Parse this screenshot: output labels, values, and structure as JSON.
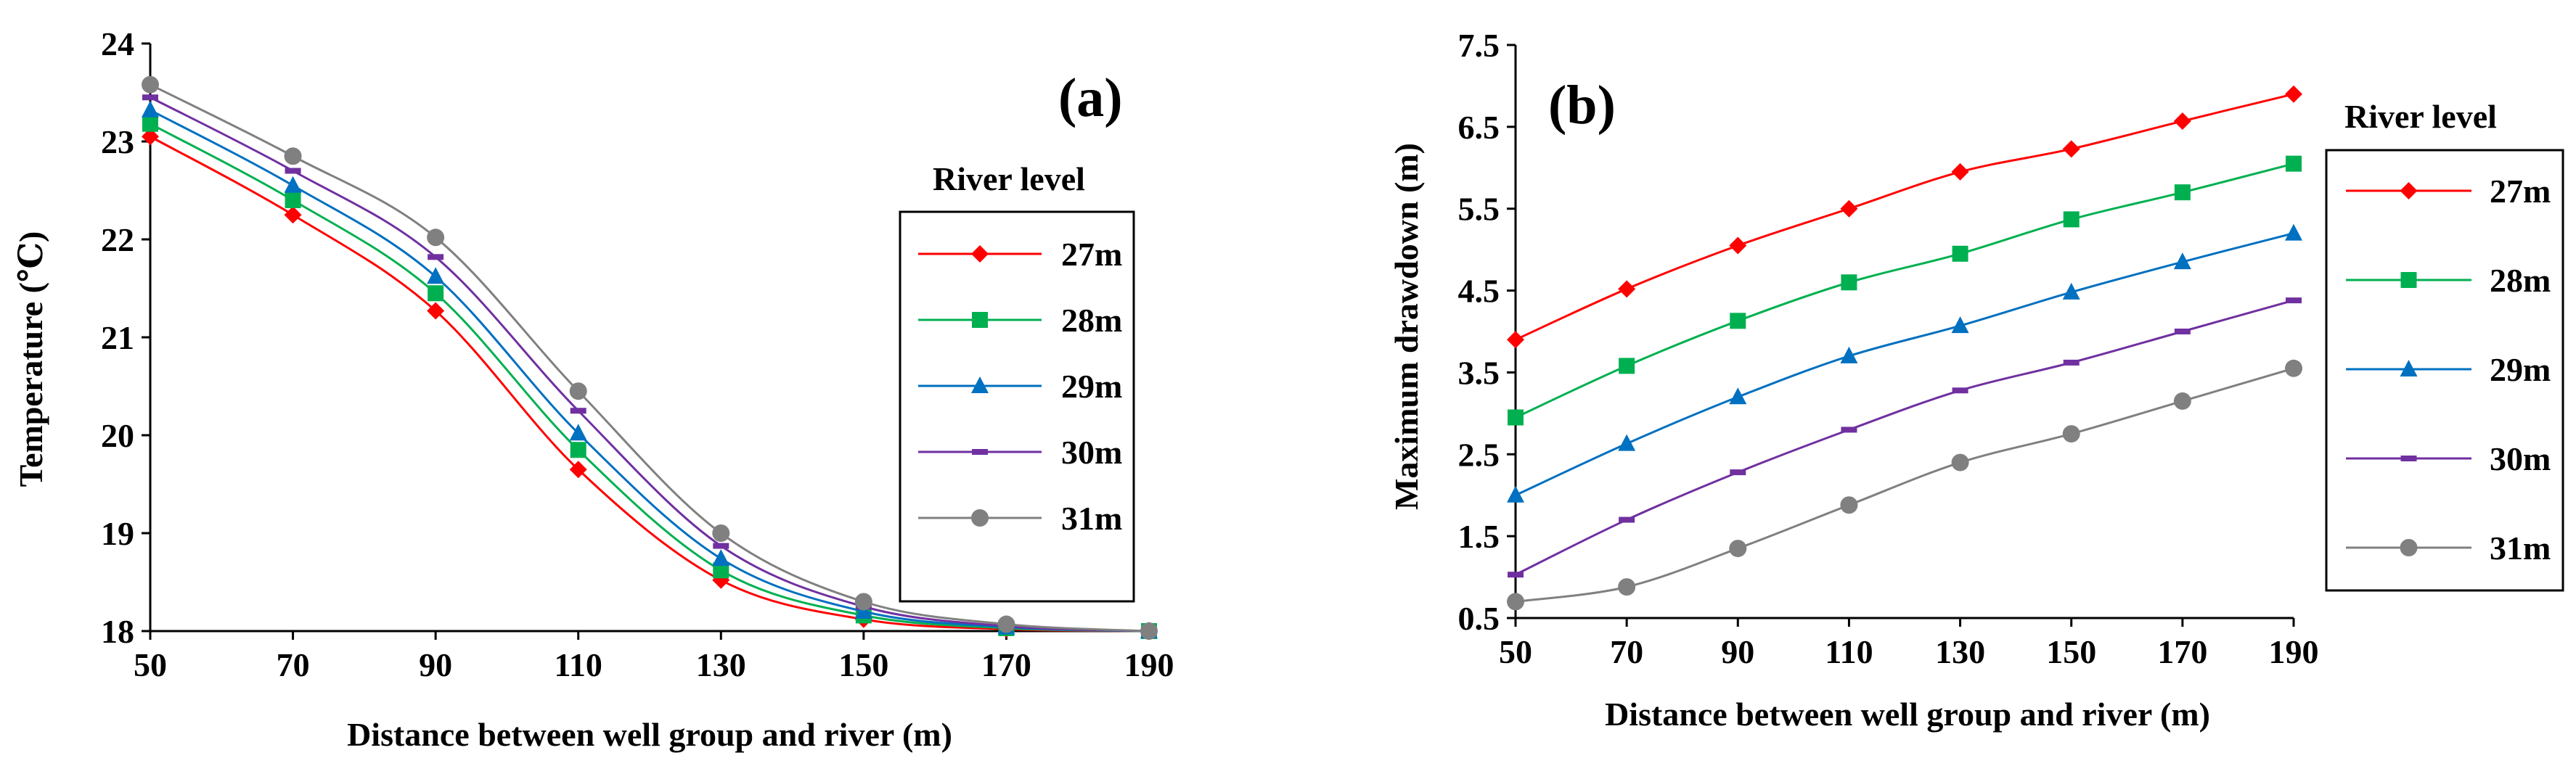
{
  "chart_data": [
    {
      "type": "line",
      "panel_label": "(a)",
      "title": "",
      "xlabel": "Distance between well group and river (m)",
      "ylabel": "Temperature (℃)",
      "x": [
        50,
        70,
        90,
        110,
        130,
        150,
        170,
        190
      ],
      "xlim": [
        50,
        190
      ],
      "ylim": [
        18,
        24
      ],
      "xticks": [
        "50",
        "70",
        "90",
        "110",
        "130",
        "150",
        "170",
        "190"
      ],
      "yticks": [
        "18",
        "19",
        "20",
        "21",
        "22",
        "23",
        "24"
      ],
      "grid": false,
      "legend_title": "River level",
      "legend_position": "right",
      "series": [
        {
          "name": "27m",
          "color": "#ff0000",
          "marker": "diamond",
          "values": [
            23.05,
            22.25,
            21.27,
            19.65,
            18.52,
            18.12,
            18.02,
            18.0
          ]
        },
        {
          "name": "28m",
          "color": "#00b050",
          "marker": "square",
          "values": [
            23.18,
            22.4,
            21.45,
            19.85,
            18.62,
            18.16,
            18.03,
            18.0
          ]
        },
        {
          "name": "29m",
          "color": "#0070c0",
          "marker": "triangle",
          "values": [
            23.32,
            22.55,
            21.62,
            20.02,
            18.74,
            18.2,
            18.04,
            18.0
          ]
        },
        {
          "name": "30m",
          "color": "#7030a0",
          "marker": "dash",
          "values": [
            23.45,
            22.7,
            21.82,
            20.25,
            18.87,
            18.25,
            18.05,
            18.0
          ]
        },
        {
          "name": "31m",
          "color": "#808080",
          "marker": "circle",
          "values": [
            23.58,
            22.85,
            22.02,
            20.45,
            19.0,
            18.3,
            18.07,
            18.0
          ]
        }
      ]
    },
    {
      "type": "line",
      "panel_label": "(b)",
      "title": "",
      "xlabel": "Distance between well group and river (m)",
      "ylabel": "Maximum drawdown (m)",
      "x": [
        50,
        70,
        90,
        110,
        130,
        150,
        170,
        190
      ],
      "xlim": [
        50,
        190
      ],
      "ylim": [
        0.5,
        7.5
      ],
      "xticks": [
        "50",
        "70",
        "90",
        "110",
        "130",
        "150",
        "170",
        "190"
      ],
      "yticks": [
        "0.5",
        "1.5",
        "2.5",
        "3.5",
        "4.5",
        "5.5",
        "6.5",
        "7.5"
      ],
      "grid": false,
      "legend_title": "River level",
      "legend_position": "right",
      "series": [
        {
          "name": "27m",
          "color": "#ff0000",
          "marker": "diamond",
          "values": [
            3.9,
            4.52,
            5.05,
            5.5,
            5.95,
            6.23,
            6.57,
            6.9
          ]
        },
        {
          "name": "28m",
          "color": "#00b050",
          "marker": "square",
          "values": [
            2.95,
            3.58,
            4.13,
            4.6,
            4.95,
            5.37,
            5.7,
            6.05
          ]
        },
        {
          "name": "29m",
          "color": "#0070c0",
          "marker": "triangle",
          "values": [
            2.0,
            2.63,
            3.2,
            3.7,
            4.07,
            4.48,
            4.85,
            5.2
          ]
        },
        {
          "name": "30m",
          "color": "#7030a0",
          "marker": "dash",
          "values": [
            1.03,
            1.7,
            2.28,
            2.8,
            3.28,
            3.62,
            4.0,
            4.38
          ]
        },
        {
          "name": "31m",
          "color": "#808080",
          "marker": "circle",
          "values": [
            0.7,
            0.88,
            1.35,
            1.88,
            2.4,
            2.75,
            3.15,
            3.55
          ]
        }
      ]
    }
  ]
}
